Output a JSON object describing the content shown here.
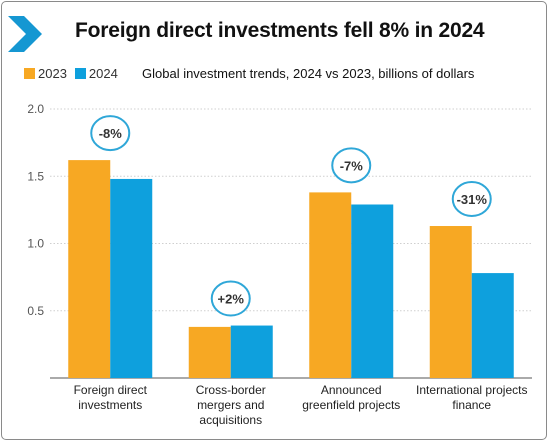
{
  "header": {
    "title": "Foreign direct investments fell 8% in 2024",
    "subtitle": "Global investment trends, 2024 vs 2023, billions of dollars",
    "logo_icon": "chevron-right-icon"
  },
  "colors": {
    "series_2023": "#f7a823",
    "series_2024": "#0ea0dd",
    "circle": "#2fa7d8",
    "chevron": "#1597d2"
  },
  "chart_data": {
    "type": "bar",
    "categories": [
      [
        "Foreign direct",
        "investments"
      ],
      [
        "Cross-border",
        "mergers and",
        "acquisitions"
      ],
      [
        "Announced",
        "greenfield projects"
      ],
      [
        "International projects",
        "finance"
      ]
    ],
    "series": [
      {
        "name": "2023",
        "values": [
          1.62,
          0.38,
          1.38,
          1.13
        ]
      },
      {
        "name": "2024",
        "values": [
          1.48,
          0.39,
          1.29,
          0.78
        ]
      }
    ],
    "annotations": [
      "-8%",
      "+2%",
      "-7%",
      "-31%"
    ],
    "yticks": [
      "0.5",
      "1.0",
      "1.5",
      "2.0"
    ],
    "ylim": [
      0,
      2.0
    ],
    "grid": true,
    "legend_position": "top-left"
  }
}
